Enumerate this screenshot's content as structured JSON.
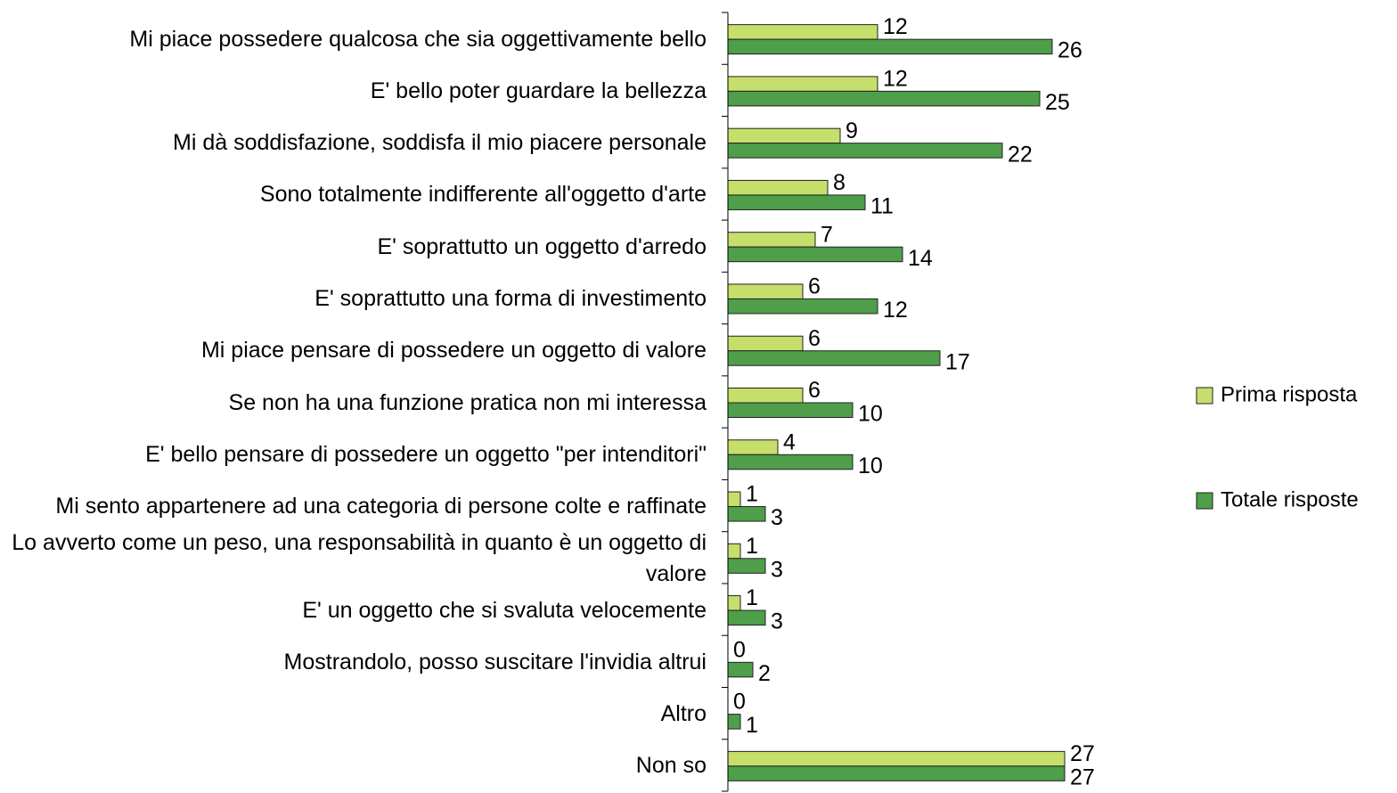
{
  "chart_data": {
    "type": "hbar",
    "categories": [
      "Mi piace possedere qualcosa che sia oggettivamente bello",
      "E' bello poter guardare la bellezza",
      "Mi dà soddisfazione, soddisfa il mio piacere personale",
      "Sono totalmente indifferente all'oggetto d'arte",
      "E' soprattutto un oggetto d'arredo",
      "E' soprattutto una forma di investimento",
      "Mi piace pensare di possedere un oggetto di valore",
      "Se non ha una funzione pratica non mi interessa",
      "E' bello pensare di possedere un oggetto \"per intenditori\"",
      "Mi sento appartenere ad una categoria di persone colte e raffinate",
      "Lo avverto come un peso, una responsabilità in quanto è un oggetto di valore",
      "E' un oggetto che si svaluta velocemente",
      "Mostrandolo, posso suscitare l'invidia altrui",
      "Altro",
      "Non so"
    ],
    "series": [
      {
        "name": "Prima risposta",
        "color": "#c6df6b",
        "values": [
          12,
          12,
          9,
          8,
          7,
          6,
          6,
          6,
          4,
          1,
          1,
          1,
          0,
          0,
          27
        ]
      },
      {
        "name": "Totale risposte",
        "color": "#4e9e4a",
        "values": [
          26,
          25,
          22,
          11,
          14,
          12,
          17,
          10,
          10,
          3,
          3,
          3,
          2,
          1,
          27
        ]
      }
    ],
    "xlim": [
      0,
      30
    ],
    "legend": "right"
  }
}
